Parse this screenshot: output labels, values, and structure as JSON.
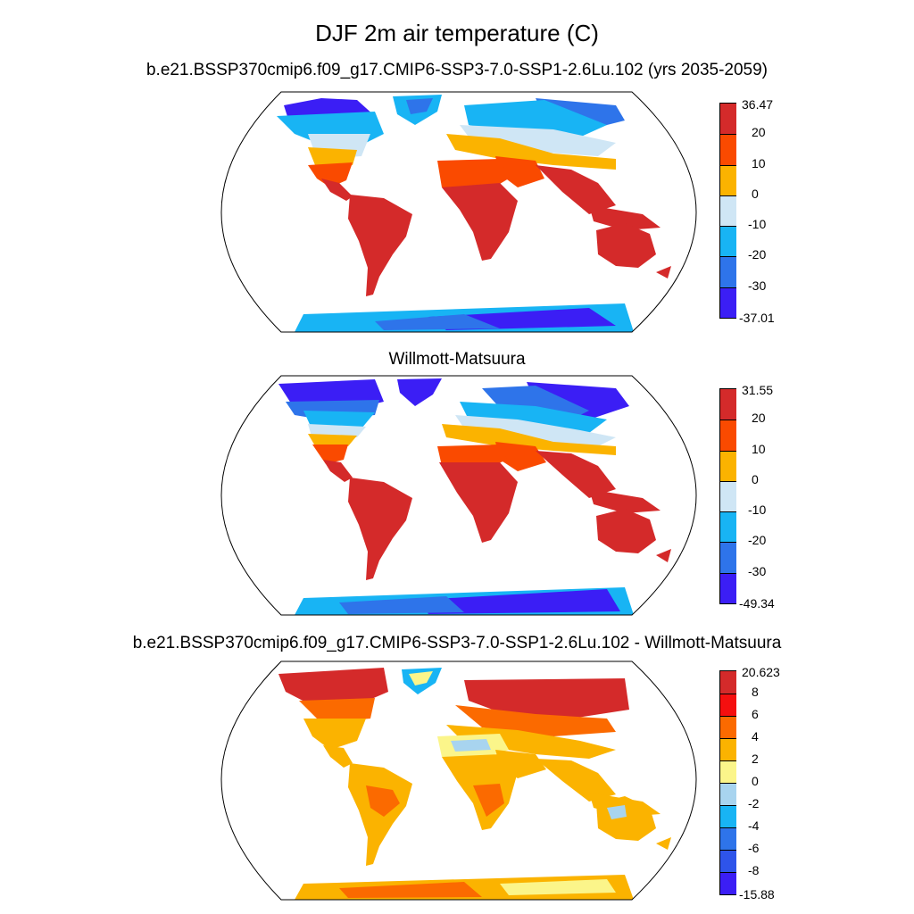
{
  "figure": {
    "title": "DJF 2m air temperature (C)",
    "panels": [
      {
        "subtitle": "b.e21.BSSP370cmip6.f09_g17.CMIP6-SSP3-7.0-SSP1-2.6Lu.102 (yrs 2035-2059)",
        "colorbar": {
          "labels": [
            "36.47",
            "20",
            "10",
            "0",
            "-10",
            "-20",
            "-30",
            "-37.01"
          ],
          "colors": [
            "#d42a2a",
            "#fa4a00",
            "#fbb300",
            "#cfe6f5",
            "#18b4f4",
            "#2e74ea",
            "#3b1ef5"
          ]
        }
      },
      {
        "subtitle": "Willmott-Matsuura",
        "colorbar": {
          "labels": [
            "31.55",
            "20",
            "10",
            "0",
            "-10",
            "-20",
            "-30",
            "-49.34"
          ],
          "colors": [
            "#d42a2a",
            "#fa4a00",
            "#fbb300",
            "#cfe6f5",
            "#18b4f4",
            "#2e74ea",
            "#3b1ef5"
          ]
        }
      },
      {
        "subtitle": "b.e21.BSSP370cmip6.f09_g17.CMIP6-SSP3-7.0-SSP1-2.6Lu.102 - Willmott-Matsuura",
        "colorbar": {
          "labels": [
            "20.623",
            "8",
            "6",
            "4",
            "2",
            "0",
            "-2",
            "-4",
            "-6",
            "-8",
            "-15.88"
          ],
          "colors": [
            "#d42a2a",
            "#f50f0f",
            "#fb6a00",
            "#fbb300",
            "#fbf58a",
            "#a8d4ef",
            "#18b4f4",
            "#2e74ea",
            "#2e54ea",
            "#3b1ef5"
          ]
        }
      }
    ]
  }
}
